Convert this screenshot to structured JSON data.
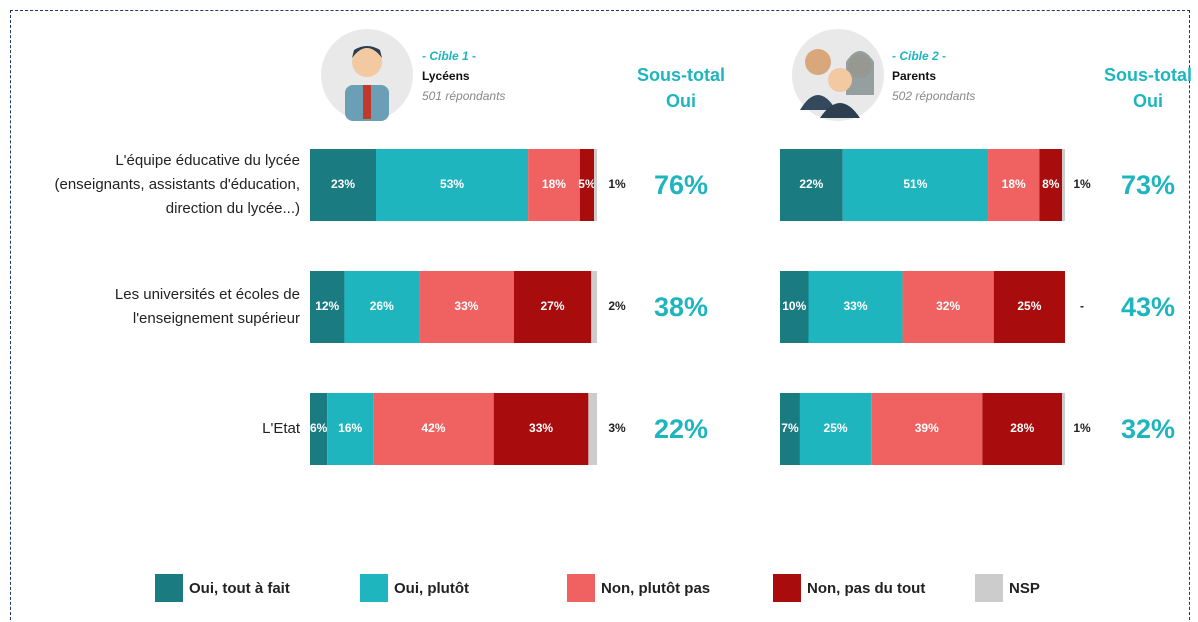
{
  "chart_data": [
    {
      "type": "bar",
      "orientation": "horizontal",
      "stacked": true,
      "header": {
        "cible": "- Cible 1 -",
        "name": "Lycéens",
        "respondents": "501 répondants"
      },
      "categories": [
        "L'équipe éducative du lycée (enseignants, assistants d'éducation, direction du lycée...)",
        "Les universités et écoles de l'enseignement supérieur",
        "L'Etat"
      ],
      "series": [
        {
          "name": "Oui, tout à fait",
          "color": "#1a7b80",
          "values": [
            23,
            12,
            6
          ],
          "value_labels": [
            "23%",
            "12%",
            "6%"
          ]
        },
        {
          "name": "Oui, plutôt",
          "color": "#1fb5bf",
          "values": [
            53,
            26,
            16
          ],
          "value_labels": [
            "53%",
            "26%",
            "16%"
          ]
        },
        {
          "name": "Non, plutôt pas",
          "color": "#f06262",
          "values": [
            18,
            33,
            42
          ],
          "value_labels": [
            "18%",
            "33%",
            "42%"
          ]
        },
        {
          "name": "Non, pas du tout",
          "color": "#a80c0c",
          "values": [
            5,
            27,
            33
          ],
          "value_labels": [
            "5%",
            "27%",
            "33%"
          ]
        },
        {
          "name": "NSP",
          "color": "#cccccc",
          "values": [
            1,
            2,
            3
          ],
          "value_labels": [
            "1%",
            "2%",
            "3%"
          ]
        }
      ],
      "subtotal": {
        "title": "Sous-total Oui",
        "values": [
          76,
          38,
          22
        ],
        "value_labels": [
          "76%",
          "38%",
          "22%"
        ]
      }
    },
    {
      "type": "bar",
      "orientation": "horizontal",
      "stacked": true,
      "header": {
        "cible": "- Cible 2 -",
        "name": "Parents",
        "respondents": "502 répondants"
      },
      "series": [
        {
          "values": [
            22,
            10,
            7
          ],
          "value_labels": [
            "22%",
            "10%",
            "7%"
          ]
        },
        {
          "values": [
            51,
            33,
            25
          ],
          "value_labels": [
            "51%",
            "33%",
            "25%"
          ]
        },
        {
          "values": [
            18,
            32,
            39
          ],
          "value_labels": [
            "18%",
            "32%",
            "39%"
          ]
        },
        {
          "values": [
            8,
            25,
            28
          ],
          "value_labels": [
            "8%",
            "25%",
            "28%"
          ]
        },
        {
          "values": [
            1,
            null,
            1
          ],
          "value_labels": [
            "1%",
            "-",
            "1%"
          ]
        }
      ],
      "subtotal": {
        "title": "Sous-total Oui",
        "values": [
          73,
          43,
          32
        ],
        "value_labels": [
          "73%",
          "43%",
          "32%"
        ]
      }
    }
  ]
}
